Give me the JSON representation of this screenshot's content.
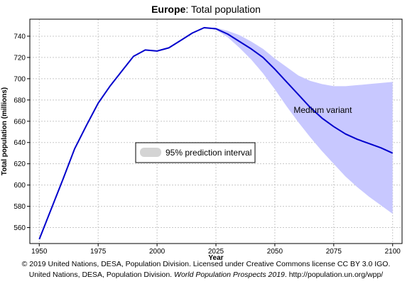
{
  "chart_data": {
    "type": "line",
    "title_bold": "Europe",
    "title_rest": ": Total population",
    "xlabel": "Year",
    "ylabel": "Total population (millions)",
    "xlim": [
      1946,
      2104
    ],
    "ylim": [
      545,
      756
    ],
    "x_ticks": [
      1950,
      1975,
      2000,
      2025,
      2050,
      2075,
      2100
    ],
    "y_ticks": [
      560,
      580,
      600,
      620,
      640,
      660,
      680,
      700,
      720,
      740
    ],
    "grid": true,
    "legend_position": "center-left",
    "legend_label": "95% prediction interval",
    "series": [
      {
        "name": "Medium variant",
        "color": "#0000cc",
        "x": [
          1950,
          1955,
          1960,
          1965,
          1970,
          1975,
          1980,
          1985,
          1990,
          1995,
          2000,
          2005,
          2010,
          2015,
          2020,
          2025,
          2030,
          2035,
          2040,
          2045,
          2050,
          2055,
          2060,
          2065,
          2070,
          2075,
          2080,
          2085,
          2090,
          2095,
          2100
        ],
        "y": [
          549,
          577,
          605,
          634,
          656,
          677,
          693,
          707,
          721,
          727,
          726,
          729,
          736,
          743,
          748,
          747,
          742,
          735,
          728,
          720,
          709,
          697,
          685,
          673,
          663,
          655,
          648,
          643,
          639,
          635,
          630
        ]
      }
    ],
    "interval": {
      "name": "95% prediction interval",
      "color": "#c8c8ff",
      "x": [
        2020,
        2025,
        2030,
        2035,
        2040,
        2045,
        2050,
        2055,
        2060,
        2065,
        2070,
        2075,
        2080,
        2085,
        2090,
        2095,
        2100
      ],
      "lower": [
        748,
        746,
        739,
        729,
        718,
        705,
        690,
        674,
        659,
        645,
        632,
        620,
        608,
        598,
        589,
        581,
        573
      ],
      "upper": [
        748,
        748,
        745,
        741,
        735,
        728,
        719,
        711,
        703,
        698,
        695,
        693,
        693,
        694,
        695,
        696,
        697
      ]
    },
    "annotation": "Medium variant"
  },
  "credits": {
    "line1": "© 2019 United Nations, DESA, Population Division. Licensed under Creative Commons license CC BY 3.0 IGO.",
    "line2_pre": "United Nations, DESA, Population Division. ",
    "line2_em": "World Population Prospects 2019",
    "line2_post": ". http://population.un.org/wpp/"
  }
}
